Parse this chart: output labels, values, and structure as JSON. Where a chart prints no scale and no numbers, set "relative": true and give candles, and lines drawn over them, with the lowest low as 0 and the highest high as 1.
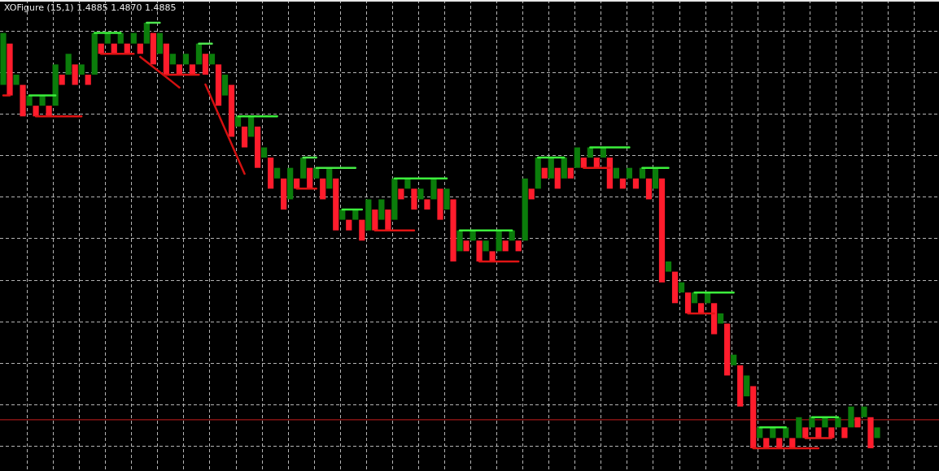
{
  "chart_data": {
    "type": "candlestick",
    "title": "XOFigure (15,1) 1.4885 1.4870 1.4885",
    "relative": true,
    "grid": true,
    "legend": false,
    "marker": "none",
    "line_style": "solid",
    "categories": [
      null,
      null,
      null,
      null,
      null,
      null,
      null,
      null,
      null,
      null,
      null,
      null,
      null,
      null,
      null,
      null,
      null,
      null,
      null,
      null,
      null,
      null,
      null,
      null,
      null,
      null,
      null,
      null,
      null,
      null,
      null,
      null,
      null,
      null,
      null,
      null,
      null,
      null,
      null,
      null,
      null,
      null,
      null,
      null,
      null,
      null,
      null,
      null,
      null,
      null,
      null,
      null,
      null,
      null,
      null,
      null,
      null,
      null,
      null,
      null,
      null,
      null,
      null,
      null,
      null,
      null,
      null,
      null,
      null,
      null,
      null,
      null,
      null,
      null,
      null,
      null,
      null,
      null,
      null,
      null,
      null,
      null,
      null,
      null,
      null,
      null,
      null,
      null,
      null,
      null,
      null,
      null,
      null,
      null,
      null,
      null,
      null,
      null,
      null,
      null,
      null,
      null,
      null,
      null,
      null,
      null,
      null,
      null,
      null,
      null,
      null,
      null,
      null,
      null,
      null,
      null,
      null,
      null,
      null,
      null,
      null,
      null,
      null,
      null,
      null,
      null,
      null,
      null,
      null,
      null,
      null,
      null,
      null,
      null,
      null
    ],
    "ohlc": [
      [
        0.854,
        0.976,
        0.854,
        0.976
      ],
      [
        0.951,
        0.951,
        0.829,
        0.829
      ],
      [
        0.854,
        0.878,
        0.854,
        0.878
      ],
      [
        0.854,
        0.854,
        0.78,
        0.78
      ],
      [
        0.805,
        0.829,
        0.805,
        0.829
      ],
      [
        0.805,
        0.805,
        0.78,
        0.78
      ],
      [
        0.805,
        0.829,
        0.805,
        0.829
      ],
      [
        0.805,
        0.805,
        0.78,
        0.78
      ],
      [
        0.805,
        0.902,
        0.805,
        0.902
      ],
      [
        0.878,
        0.878,
        0.854,
        0.854
      ],
      [
        0.878,
        0.927,
        0.878,
        0.927
      ],
      [
        0.902,
        0.902,
        0.854,
        0.854
      ],
      [
        0.878,
        0.902,
        0.878,
        0.902
      ],
      [
        0.878,
        0.878,
        0.854,
        0.854
      ],
      [
        0.878,
        0.976,
        0.878,
        0.976
      ],
      [
        0.951,
        0.951,
        0.927,
        0.927
      ],
      [
        0.951,
        0.976,
        0.951,
        0.976
      ],
      [
        0.951,
        0.951,
        0.927,
        0.927
      ],
      [
        0.951,
        0.976,
        0.951,
        0.976
      ],
      [
        0.951,
        0.951,
        0.927,
        0.927
      ],
      [
        0.951,
        0.976,
        0.951,
        0.976
      ],
      [
        0.951,
        0.951,
        0.927,
        0.927
      ],
      [
        0.951,
        1,
        0.951,
        1
      ],
      [
        0.976,
        0.976,
        0.902,
        0.902
      ],
      [
        0.927,
        0.976,
        0.927,
        0.976
      ],
      [
        0.951,
        0.951,
        0.878,
        0.878
      ],
      [
        0.902,
        0.927,
        0.902,
        0.927
      ],
      [
        0.902,
        0.902,
        0.878,
        0.878
      ],
      [
        0.902,
        0.927,
        0.902,
        0.927
      ],
      [
        0.902,
        0.902,
        0.878,
        0.878
      ],
      [
        0.902,
        0.951,
        0.902,
        0.951
      ],
      [
        0.927,
        0.927,
        0.878,
        0.878
      ],
      [
        0.902,
        0.927,
        0.902,
        0.927
      ],
      [
        0.902,
        0.902,
        0.805,
        0.805
      ],
      [
        0.829,
        0.878,
        0.829,
        0.878
      ],
      [
        0.854,
        0.854,
        0.732,
        0.732
      ],
      [
        0.756,
        0.78,
        0.756,
        0.78
      ],
      [
        0.756,
        0.756,
        0.707,
        0.707
      ],
      [
        0.732,
        0.78,
        0.732,
        0.78
      ],
      [
        0.756,
        0.756,
        0.659,
        0.659
      ],
      [
        0.683,
        0.707,
        0.683,
        0.707
      ],
      [
        0.683,
        0.683,
        0.61,
        0.61
      ],
      [
        0.634,
        0.659,
        0.634,
        0.659
      ],
      [
        0.634,
        0.634,
        0.561,
        0.561
      ],
      [
        0.585,
        0.659,
        0.585,
        0.659
      ],
      [
        0.634,
        0.634,
        0.61,
        0.61
      ],
      [
        0.634,
        0.683,
        0.634,
        0.683
      ],
      [
        0.659,
        0.659,
        0.61,
        0.61
      ],
      [
        0.634,
        0.659,
        0.634,
        0.659
      ],
      [
        0.634,
        0.634,
        0.585,
        0.585
      ],
      [
        0.61,
        0.659,
        0.61,
        0.659
      ],
      [
        0.634,
        0.634,
        0.512,
        0.512
      ],
      [
        0.537,
        0.561,
        0.537,
        0.561
      ],
      [
        0.537,
        0.537,
        0.512,
        0.512
      ],
      [
        0.537,
        0.561,
        0.537,
        0.561
      ],
      [
        0.537,
        0.537,
        0.488,
        0.488
      ],
      [
        0.512,
        0.585,
        0.512,
        0.585
      ],
      [
        0.561,
        0.561,
        0.512,
        0.512
      ],
      [
        0.537,
        0.585,
        0.537,
        0.585
      ],
      [
        0.561,
        0.561,
        0.512,
        0.512
      ],
      [
        0.537,
        0.634,
        0.537,
        0.634
      ],
      [
        0.61,
        0.61,
        0.585,
        0.585
      ],
      [
        0.61,
        0.634,
        0.61,
        0.634
      ],
      [
        0.61,
        0.61,
        0.561,
        0.561
      ],
      [
        0.585,
        0.61,
        0.585,
        0.61
      ],
      [
        0.585,
        0.585,
        0.561,
        0.561
      ],
      [
        0.585,
        0.634,
        0.585,
        0.634
      ],
      [
        0.61,
        0.61,
        0.537,
        0.537
      ],
      [
        0.561,
        0.61,
        0.561,
        0.61
      ],
      [
        0.585,
        0.585,
        0.439,
        0.439
      ],
      [
        0.463,
        0.512,
        0.463,
        0.512
      ],
      [
        0.488,
        0.488,
        0.463,
        0.463
      ],
      [
        0.488,
        0.512,
        0.488,
        0.512
      ],
      [
        0.488,
        0.488,
        0.439,
        0.439
      ],
      [
        0.463,
        0.488,
        0.463,
        0.488
      ],
      [
        0.463,
        0.463,
        0.439,
        0.439
      ],
      [
        0.463,
        0.512,
        0.463,
        0.512
      ],
      [
        0.488,
        0.488,
        0.463,
        0.463
      ],
      [
        0.488,
        0.512,
        0.488,
        0.512
      ],
      [
        0.488,
        0.488,
        0.463,
        0.463
      ],
      [
        0.488,
        0.634,
        0.488,
        0.634
      ],
      [
        0.61,
        0.61,
        0.585,
        0.585
      ],
      [
        0.61,
        0.683,
        0.61,
        0.683
      ],
      [
        0.659,
        0.659,
        0.634,
        0.634
      ],
      [
        0.634,
        0.683,
        0.634,
        0.683
      ],
      [
        0.659,
        0.659,
        0.61,
        0.61
      ],
      [
        0.634,
        0.683,
        0.634,
        0.683
      ],
      [
        0.659,
        0.659,
        0.634,
        0.634
      ],
      [
        0.659,
        0.707,
        0.659,
        0.707
      ],
      [
        0.683,
        0.683,
        0.659,
        0.659
      ],
      [
        0.683,
        0.707,
        0.683,
        0.707
      ],
      [
        0.683,
        0.683,
        0.659,
        0.659
      ],
      [
        0.683,
        0.707,
        0.683,
        0.707
      ],
      [
        0.683,
        0.683,
        0.61,
        0.61
      ],
      [
        0.634,
        0.659,
        0.634,
        0.659
      ],
      [
        0.634,
        0.634,
        0.61,
        0.61
      ],
      [
        0.634,
        0.659,
        0.634,
        0.659
      ],
      [
        0.634,
        0.634,
        0.61,
        0.61
      ],
      [
        0.634,
        0.659,
        0.634,
        0.659
      ],
      [
        0.634,
        0.634,
        0.585,
        0.585
      ],
      [
        0.61,
        0.659,
        0.61,
        0.659
      ],
      [
        0.634,
        0.634,
        0.39,
        0.39
      ],
      [
        0.415,
        0.439,
        0.415,
        0.439
      ],
      [
        0.415,
        0.415,
        0.341,
        0.341
      ],
      [
        0.366,
        0.39,
        0.366,
        0.39
      ],
      [
        0.366,
        0.366,
        0.317,
        0.317
      ],
      [
        0.341,
        0.366,
        0.341,
        0.366
      ],
      [
        0.341,
        0.341,
        0.317,
        0.317
      ],
      [
        0.341,
        0.366,
        0.341,
        0.366
      ],
      [
        0.341,
        0.341,
        0.268,
        0.268
      ],
      [
        0.293,
        0.317,
        0.293,
        0.317
      ],
      [
        0.293,
        0.293,
        0.171,
        0.171
      ],
      [
        0.195,
        0.22,
        0.195,
        0.22
      ],
      [
        0.195,
        0.195,
        0.098,
        0.098
      ],
      [
        0.122,
        0.171,
        0.122,
        0.171
      ],
      [
        0.146,
        0.146,
        0,
        0
      ],
      [
        0.024,
        0.049,
        0.024,
        0.049
      ],
      [
        0.024,
        0.024,
        0,
        0
      ],
      [
        0.024,
        0.049,
        0.024,
        0.049
      ],
      [
        0.024,
        0.024,
        0,
        0
      ],
      [
        0.024,
        0.049,
        0.024,
        0.049
      ],
      [
        0.024,
        0.024,
        0,
        0
      ],
      [
        0.024,
        0.073,
        0.024,
        0.073
      ],
      [
        0.049,
        0.049,
        0.024,
        0.024
      ],
      [
        0.049,
        0.073,
        0.049,
        0.073
      ],
      [
        0.049,
        0.049,
        0.024,
        0.024
      ],
      [
        0.049,
        0.073,
        0.049,
        0.073
      ],
      [
        0.049,
        0.049,
        0.024,
        0.024
      ],
      [
        0.049,
        0.073,
        0.049,
        0.073
      ],
      [
        0.049,
        0.049,
        0.024,
        0.024
      ],
      [
        0.049,
        0.098,
        0.049,
        0.098
      ],
      [
        0.073,
        0.073,
        0.049,
        0.049
      ],
      [
        0.073,
        0.098,
        0.073,
        0.098
      ],
      [
        0.073,
        0.073,
        0,
        0
      ],
      [
        0.024,
        0.049,
        0.024,
        0.049
      ]
    ],
    "colors": [
      "#0b7d0b",
      "#ff1c2c",
      "#0b7d0b",
      "#ff1c2c",
      "#0b7d0b",
      "#ff1c2c",
      "#0b7d0b",
      "#ff1c2c",
      "#0b7d0b",
      "#ff1c2c",
      "#0b7d0b",
      "#ff1c2c",
      "#0b7d0b",
      "#ff1c2c",
      "#0b7d0b",
      "#ff1c2c",
      "#0b7d0b",
      "#ff1c2c",
      "#0b7d0b",
      "#ff1c2c",
      "#0b7d0b",
      "#ff1c2c",
      "#0b7d0b",
      "#ff1c2c",
      "#0b7d0b",
      "#ff1c2c",
      "#0b7d0b",
      "#ff1c2c",
      "#0b7d0b",
      "#ff1c2c",
      "#0b7d0b",
      "#ff1c2c",
      "#0b7d0b",
      "#ff1c2c",
      "#0b7d0b",
      "#ff1c2c",
      "#0b7d0b",
      "#ff1c2c",
      "#0b7d0b",
      "#ff1c2c",
      "#0b7d0b",
      "#ff1c2c",
      "#0b7d0b",
      "#ff1c2c",
      "#0b7d0b",
      "#ff1c2c",
      "#0b7d0b",
      "#ff1c2c",
      "#0b7d0b",
      "#ff1c2c",
      "#0b7d0b",
      "#ff1c2c",
      "#0b7d0b",
      "#ff1c2c",
      "#0b7d0b",
      "#ff1c2c",
      "#0b7d0b",
      "#ff1c2c",
      "#0b7d0b",
      "#ff1c2c",
      "#0b7d0b",
      "#ff1c2c",
      "#0b7d0b",
      "#ff1c2c",
      "#0b7d0b",
      "#ff1c2c",
      "#0b7d0b",
      "#ff1c2c",
      "#0b7d0b",
      "#ff1c2c",
      "#0b7d0b",
      "#ff1c2c",
      "#0b7d0b",
      "#ff1c2c",
      "#0b7d0b",
      "#ff1c2c",
      "#0b7d0b",
      "#ff1c2c",
      "#0b7d0b",
      "#ff1c2c",
      "#0b7d0b",
      "#ff1c2c",
      "#0b7d0b",
      "#ff1c2c",
      "#0b7d0b",
      "#ff1c2c",
      "#0b7d0b",
      "#ff1c2c",
      "#0b7d0b",
      "#ff1c2c",
      "#0b7d0b",
      "#ff1c2c",
      "#0b7d0b",
      "#ff1c2c",
      "#0b7d0b",
      "#ff1c2c",
      "#0b7d0b",
      "#ff1c2c",
      "#0b7d0b",
      "#ff1c2c",
      "#0b7d0b",
      "#ff1c2c",
      "#0b7d0b",
      "#ff1c2c",
      "#0b7d0b",
      "#ff1c2c",
      "#0b7d0b",
      "#ff1c2c",
      "#0b7d0b",
      "#ff1c2c",
      "#0b7d0b",
      "#ff1c2c",
      "#0b7d0b",
      "#ff1c2c",
      "#0b7d0b",
      "#ff1c2c",
      "#0b7d0b",
      "#ff1c2c",
      "#0b7d0b",
      "#ff1c2c",
      "#0b7d0b",
      "#ff1c2c",
      "#0b7d0b",
      "#ff1c2c",
      "#0b7d0b",
      "#ff1c2c",
      "#0b7d0b",
      "#ff1c2c",
      "#0b7d0b",
      "#ff1c2c",
      "#0b7d0b",
      "#ff1c2c",
      "#0b7d0b",
      "#ff1c2c",
      "#0b7d0b"
    ],
    "series": [
      {
        "type": "line",
        "color": "#50e650",
        "values": [
          null,
          null,
          null,
          null,
          null,
          null,
          null,
          null,
          null,
          null,
          null,
          null,
          null,
          null,
          null,
          null,
          null,
          null,
          null,
          null,
          null,
          null,
          1,
          1,
          1,
          null,
          null,
          null,
          null,
          null,
          0.951,
          0.951,
          0.951,
          null,
          null,
          null,
          null,
          null,
          null,
          null,
          null,
          null,
          null,
          null,
          null,
          null,
          0.683,
          0.683,
          0.683,
          null,
          null,
          null,
          null,
          null,
          null,
          null,
          null,
          null,
          null,
          null,
          null,
          null,
          null,
          null,
          null,
          null,
          null,
          null,
          null,
          null,
          null,
          null,
          null,
          null,
          null,
          null,
          null,
          null,
          null,
          null,
          null,
          null,
          null,
          null,
          null,
          null,
          null,
          null,
          null,
          null,
          null,
          null,
          null,
          null,
          null,
          null,
          null,
          null,
          null,
          null,
          null,
          null,
          null,
          null,
          null,
          null,
          null,
          null,
          null,
          null,
          null,
          null,
          null,
          null,
          null,
          null,
          null,
          null,
          null,
          null,
          null,
          null,
          null,
          null,
          null,
          null,
          null,
          null,
          null,
          null,
          null,
          null,
          null,
          null,
          null
        ]
      },
      {
        "type": "line",
        "color": "#3cf03c",
        "values": [
          null,
          null,
          null,
          null,
          0.829,
          0.829,
          0.829,
          0.829,
          0.829,
          null,
          null,
          null,
          null,
          null,
          0.976,
          0.976,
          0.976,
          0.976,
          0.976,
          null,
          null,
          null,
          null,
          null,
          null,
          null,
          null,
          null,
          null,
          null,
          null,
          null,
          null,
          null,
          null,
          null,
          0.78,
          0.78,
          0.78,
          0.78,
          0.78,
          0.78,
          0.78,
          null,
          null,
          null,
          null,
          null,
          null,
          null,
          null,
          null,
          0.561,
          0.561,
          0.561,
          0.561,
          null,
          null,
          null,
          null,
          0.634,
          0.634,
          0.634,
          0.634,
          0.634,
          0.634,
          0.634,
          0.634,
          0.634,
          null,
          0.512,
          0.512,
          0.512,
          0.512,
          0.512,
          0.512,
          0.512,
          0.512,
          0.512,
          null,
          null,
          null,
          0.683,
          0.683,
          0.683,
          0.683,
          0.683,
          null,
          null,
          null,
          0.707,
          0.707,
          0.707,
          0.707,
          0.707,
          0.707,
          0.707,
          null,
          0.659,
          0.659,
          0.659,
          0.659,
          0.659,
          null,
          null,
          null,
          0.366,
          0.366,
          0.366,
          0.366,
          0.366,
          0.366,
          0.366,
          null,
          null,
          null,
          0.049,
          0.049,
          0.049,
          0.049,
          0.049,
          null,
          null,
          null,
          0.073,
          0.073,
          0.073,
          0.073,
          0.073,
          null,
          null,
          null,
          null,
          null,
          null
        ]
      },
      {
        "type": "line",
        "color": "#46ea46",
        "values": [
          null,
          null,
          null,
          null,
          null,
          null,
          null,
          null,
          null,
          null,
          null,
          null,
          null,
          null,
          null,
          null,
          null,
          null,
          null,
          null,
          null,
          null,
          null,
          null,
          null,
          null,
          null,
          null,
          null,
          null,
          null,
          null,
          null,
          null,
          null,
          null,
          null,
          null,
          null,
          null,
          null,
          null,
          null,
          null,
          null,
          null,
          null,
          null,
          0.659,
          0.659,
          0.659,
          0.659,
          0.659,
          0.659,
          0.659,
          null,
          null,
          null,
          null,
          null,
          null,
          null,
          null,
          null,
          null,
          null,
          null,
          null,
          null,
          null,
          null,
          null,
          null,
          null,
          null,
          null,
          null,
          null,
          null,
          null,
          null,
          null,
          null,
          null,
          null,
          null,
          null,
          null,
          null,
          null,
          null,
          null,
          null,
          null,
          null,
          null,
          null,
          null,
          null,
          null,
          null,
          null,
          null,
          null,
          null,
          null,
          null,
          null,
          null,
          null,
          null,
          null,
          null,
          null,
          null,
          null,
          null,
          null,
          null,
          null,
          null,
          null,
          null,
          null,
          null,
          null,
          null,
          null,
          null,
          null,
          null,
          null,
          null,
          null,
          null
        ]
      },
      {
        "type": "line",
        "color": "#e01414",
        "values": [
          0.829,
          0.829,
          null,
          null,
          null,
          0.78,
          0.78,
          0.78,
          0.78,
          0.78,
          0.78,
          0.78,
          0.78,
          null,
          null,
          0.927,
          0.927,
          0.927,
          0.927,
          0.927,
          0.927,
          null,
          null,
          null,
          null,
          0.878,
          0.878,
          0.878,
          0.878,
          0.878,
          0.878,
          null,
          null,
          null,
          null,
          null,
          null,
          null,
          null,
          null,
          null,
          null,
          null,
          null,
          null,
          0.61,
          0.61,
          0.61,
          0.61,
          null,
          null,
          null,
          null,
          null,
          null,
          null,
          null,
          0.512,
          0.512,
          0.512,
          0.512,
          0.512,
          0.512,
          0.512,
          null,
          null,
          null,
          null,
          null,
          null,
          null,
          null,
          null,
          0.439,
          0.439,
          0.439,
          0.439,
          0.439,
          0.439,
          0.439,
          null,
          null,
          null,
          null,
          null,
          null,
          null,
          null,
          null,
          0.659,
          0.659,
          0.659,
          0.659,
          0.659,
          null,
          null,
          null,
          null,
          null,
          null,
          null,
          null,
          null,
          null,
          null,
          0.317,
          0.317,
          0.317,
          0.317,
          0.317,
          null,
          null,
          null,
          null,
          null,
          0,
          0,
          0,
          0,
          0,
          0,
          0,
          0,
          0,
          0,
          0,
          null,
          null,
          null,
          null,
          null,
          null,
          null,
          null,
          null
        ]
      },
      {
        "type": "line",
        "color": "#e81c1c",
        "values": [
          null,
          null,
          null,
          null,
          null,
          null,
          null,
          null,
          null,
          null,
          null,
          null,
          null,
          null,
          null,
          null,
          null,
          null,
          null,
          null,
          null,
          null,
          null,
          null,
          null,
          null,
          null,
          null,
          null,
          null,
          null,
          null,
          null,
          null,
          null,
          null,
          null,
          null,
          null,
          null,
          null,
          null,
          null,
          null,
          null,
          null,
          null,
          null,
          null,
          null,
          null,
          null,
          null,
          null,
          null,
          null,
          null,
          null,
          null,
          null,
          null,
          null,
          null,
          null,
          null,
          null,
          null,
          null,
          null,
          null,
          null,
          null,
          null,
          null,
          null,
          null,
          null,
          null,
          null,
          null,
          null,
          null,
          null,
          null,
          null,
          null,
          null,
          null,
          null,
          null,
          null,
          null,
          null,
          null,
          null,
          null,
          null,
          null,
          null,
          null,
          null,
          null,
          null,
          null,
          null,
          null,
          null,
          null,
          null,
          null,
          null,
          null,
          null,
          null,
          null,
          null,
          null,
          null,
          null,
          null,
          null,
          null,
          null,
          0.024,
          0.024,
          0.024,
          0.024,
          0.024,
          null,
          null,
          null,
          null,
          null,
          null,
          null
        ]
      },
      {
        "type": "line",
        "color": "#d41010",
        "values": [
          null,
          null,
          null,
          null,
          null,
          null,
          null,
          null,
          null,
          null,
          null,
          null,
          null,
          null,
          null,
          null,
          null,
          null,
          null,
          null,
          null,
          0.92,
          0.908,
          0.896,
          0.884,
          0.872,
          0.86,
          0.848,
          null,
          null,
          null,
          0.855,
          0.82,
          0.785,
          0.75,
          0.715,
          0.68,
          0.645,
          null,
          null,
          null,
          null,
          null,
          null,
          null,
          null,
          null,
          null,
          null,
          null,
          null,
          null,
          null,
          null,
          null,
          null,
          null,
          null,
          null,
          null,
          null,
          null,
          null,
          null,
          null,
          null,
          null,
          null,
          null,
          null,
          null,
          null,
          null,
          null,
          null,
          null,
          null,
          null,
          null,
          null,
          null,
          null,
          null,
          null,
          null,
          null,
          null,
          null,
          null,
          null,
          null,
          null,
          null,
          null,
          null,
          null,
          null,
          null,
          null,
          null,
          null,
          null,
          null,
          null,
          null,
          null,
          null,
          null,
          null,
          null,
          null,
          null,
          null,
          null,
          null,
          null,
          null,
          null,
          null,
          null,
          null,
          null,
          null,
          null,
          null,
          null,
          null,
          null,
          null,
          null,
          null,
          null,
          null,
          null,
          null
        ]
      }
    ],
    "ref_lines": [
      {
        "axis": "y",
        "value": 0.067,
        "color": "#c81e1e"
      }
    ]
  }
}
